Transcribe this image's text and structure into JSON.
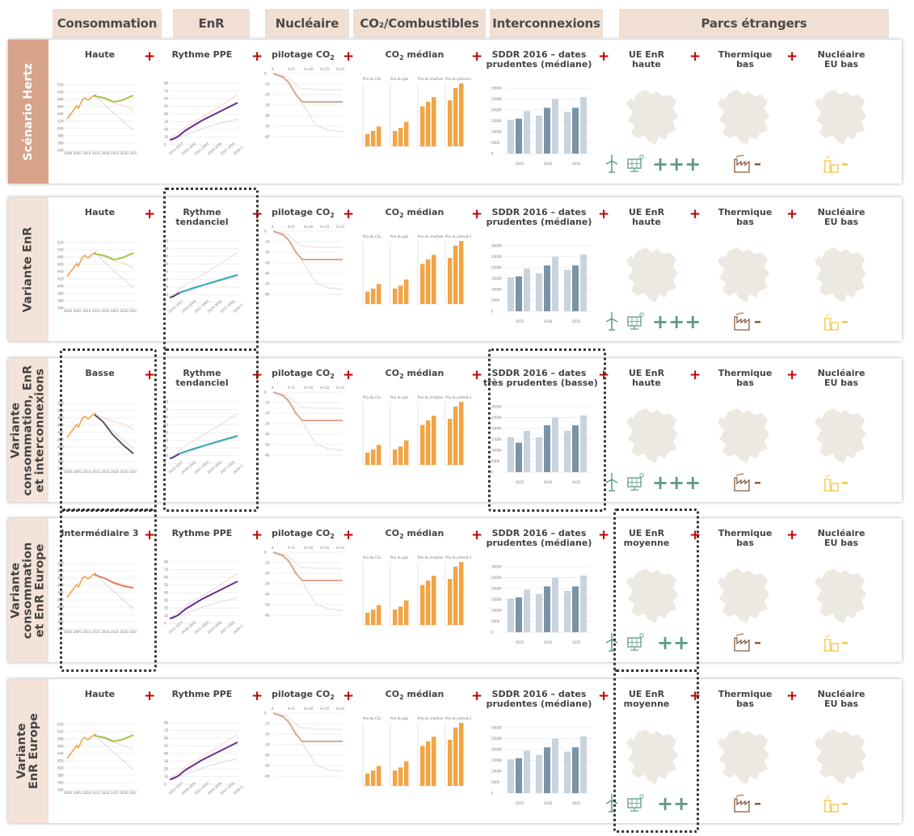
{
  "headers": {
    "consommation": "Consommation",
    "enr": "EnR",
    "nucleaire": "Nucléaire",
    "co2": "CO₂/Combustibles",
    "interconnexions": "Interconnexions",
    "parcs": "Parcs étrangers"
  },
  "colors": {
    "header_bg": "#f2dfd3",
    "first_row_label_bg": "#d7a38a",
    "row_label_bg": "#f4e3d8",
    "plus_red": "#c00000",
    "plus_green": "#5c9a8a",
    "consumption_orange": "#f2a446",
    "consumption_green": "#9bc43c",
    "consumption_dark": "#4d4d58",
    "consumption_red": "#e8735a",
    "enr_purple": "#6a2d86",
    "enr_teal": "#3aa8b6",
    "co2_bar_orange": "#f2a446",
    "nuclear_line": "#dca892",
    "interconnexion_dark": "#7a94a7",
    "interconnexion_light": "#c9d3dd",
    "map_fill": "#ece9e2",
    "thermal_icon": "#8b5a3c",
    "nuclear_icon": "#f0c64a"
  },
  "common": {
    "nucleaire_title": "pilotage CO",
    "nucleaire_sub": "2",
    "co2_title_a": "CO",
    "co2_title_sub": "2",
    "co2_title_b": " médian",
    "thermique_title": "Thermique\nbas",
    "nucleaire_eu_title": "Nucléaire\nEU bas",
    "nuc_axis": [
      "A",
      "A+5",
      "A+10",
      "A+15",
      "A+20"
    ],
    "co2_mini_titles": [
      "Prix du CO₂",
      "Prix du gaz",
      "Prix du charbon",
      "Prix du pétrole brut"
    ],
    "interco_groups": [
      "2025",
      "2030",
      "2035"
    ],
    "interco_ylabels": [
      "30000",
      "25000",
      "20000",
      "15000",
      "10000",
      "5000",
      "0"
    ],
    "thermal_sign": "-",
    "nuclear_sign": "-"
  },
  "rows": [
    {
      "label": "Scénario Hertz",
      "consommation": {
        "title": "Haute",
        "variant": "haute"
      },
      "enr": {
        "title": "Rythme PPE",
        "variant": "ppe"
      },
      "interco": {
        "title": "SDDR 2016 – dates\nprudentes (médiane)",
        "variant": "mediane"
      },
      "ue": {
        "title": "UE EnR\nhaute",
        "plus_signs": "+++"
      }
    },
    {
      "label": "Variante EnR",
      "consommation": {
        "title": "Haute",
        "variant": "haute"
      },
      "enr": {
        "title": "Rythme\ntendanciel",
        "variant": "tendanciel"
      },
      "interco": {
        "title": "SDDR 2016 – dates\nprudentes (médiane)",
        "variant": "mediane"
      },
      "ue": {
        "title": "UE EnR\nhaute",
        "plus_signs": "+++"
      }
    },
    {
      "label": "Variante\nconsommation, EnR\net interconnexions",
      "consommation": {
        "title": "Basse",
        "variant": "basse"
      },
      "enr": {
        "title": "Rythme\ntendanciel",
        "variant": "tendanciel"
      },
      "interco": {
        "title": "SDDR 2016 – dates\ntrès prudentes (basse)",
        "variant": "basse"
      },
      "ue": {
        "title": "UE EnR\nhaute",
        "plus_signs": "+++"
      }
    },
    {
      "label": "Variante\nconsommation\net EnR Europe",
      "consommation": {
        "title": "Intermédiaire 3",
        "variant": "intermediaire"
      },
      "enr": {
        "title": "Rythme PPE",
        "variant": "ppe"
      },
      "interco": {
        "title": "SDDR 2016 – dates\nprudentes (médiane)",
        "variant": "mediane"
      },
      "ue": {
        "title": "UE EnR\nmoyenne",
        "plus_signs": "++"
      }
    },
    {
      "label": "Variante\nEnR Europe",
      "consommation": {
        "title": "Haute",
        "variant": "haute"
      },
      "enr": {
        "title": "Rythme PPE",
        "variant": "ppe"
      },
      "interco": {
        "title": "SDDR 2016 – dates\nprudentes (médiane)",
        "variant": "mediane"
      },
      "ue": {
        "title": "UE EnR\nmoyenne",
        "plus_signs": "++"
      }
    }
  ],
  "highlights": [
    {
      "row": 1,
      "col": "enr"
    },
    {
      "row": 2,
      "col": "consommation"
    },
    {
      "row": 2,
      "col": "enr"
    },
    {
      "row": 2,
      "col": "interco"
    },
    {
      "row": 3,
      "col": "consommation"
    },
    {
      "row": 3,
      "col": "ue"
    },
    {
      "row": 4,
      "col": "ue"
    }
  ]
}
